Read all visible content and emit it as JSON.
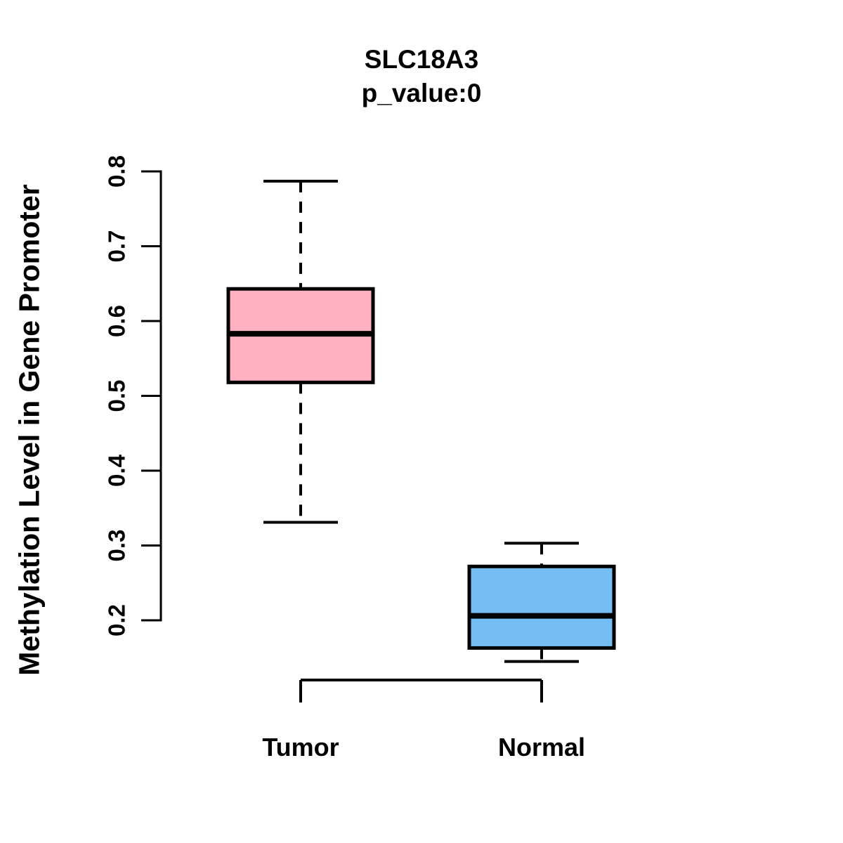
{
  "title": "SLC18A3",
  "subtitle": "p_value:0",
  "ylabel": "Methylation Level in Gene Promoter",
  "colors": {
    "background": "#FFFFFF",
    "line": "#000000",
    "tumor_fill": "#FFB0C1",
    "normal_fill": "#74BEF4"
  },
  "chart_data": {
    "type": "boxplot",
    "title": "SLC18A3",
    "subtitle": "p_value:0",
    "xlabel": "",
    "ylabel": "Methylation Level in Gene Promoter",
    "categories": [
      "Tumor",
      "Normal"
    ],
    "series": [
      {
        "name": "Tumor",
        "whisker_low": 0.331,
        "q1": 0.518,
        "median": 0.583,
        "q3": 0.643,
        "whisker_high": 0.787,
        "fill": "#FFB0C1"
      },
      {
        "name": "Normal",
        "whisker_low": 0.145,
        "q1": 0.163,
        "median": 0.206,
        "q3": 0.272,
        "whisker_high": 0.303,
        "fill": "#74BEF4"
      }
    ],
    "yticks": [
      "0.2",
      "0.3",
      "0.4",
      "0.5",
      "0.6",
      "0.7",
      "0.8"
    ],
    "axis_range": [
      0.2,
      0.8
    ],
    "grid": false,
    "legend": "none",
    "whisker_style": "dashed"
  }
}
